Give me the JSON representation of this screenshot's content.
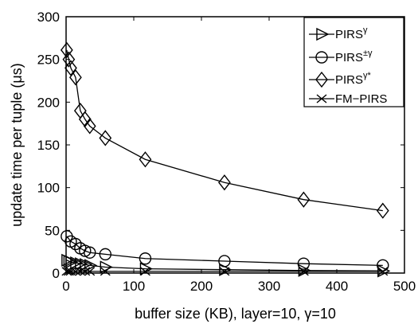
{
  "chart_data": {
    "type": "line",
    "xlabel": "buffer size (KB), layer=10, γ=10",
    "ylabel": "update time per tuple (μs)",
    "xlim": [
      0,
      500
    ],
    "ylim": [
      0,
      300
    ],
    "x_ticks": [
      "0",
      "100",
      "200",
      "300",
      "400",
      "500"
    ],
    "y_ticks": [
      "0",
      "50",
      "100",
      "150",
      "200",
      "250",
      "300"
    ],
    "grid": false,
    "legend_position": "top-right",
    "series": [
      {
        "name": "PIRS",
        "name_sup": "γ",
        "marker": "triangle-right",
        "x": [
          1,
          4,
          7,
          14,
          21,
          28,
          35,
          58,
          117,
          234,
          351,
          468
        ],
        "y": [
          15,
          14,
          13,
          12,
          11,
          10,
          9,
          7,
          5,
          4,
          3,
          2.5
        ]
      },
      {
        "name": "PIRS",
        "name_sup": "±γ",
        "marker": "circle",
        "x": [
          1,
          7,
          14,
          21,
          28,
          35,
          58,
          117,
          234,
          351,
          468
        ],
        "y": [
          43,
          37,
          34,
          29,
          26,
          24,
          22,
          17,
          14,
          11,
          9
        ]
      },
      {
        "name": "PIRS",
        "name_sup": "γ*",
        "marker": "diamond",
        "x": [
          1,
          4,
          7,
          14,
          21,
          28,
          35,
          58,
          117,
          234,
          351,
          468
        ],
        "y": [
          261,
          250,
          240,
          229,
          190,
          180,
          172,
          158,
          133,
          106,
          86,
          73
        ]
      },
      {
        "name": "FM−PIRS",
        "name_sup": "",
        "marker": "x",
        "x": [
          1,
          4,
          7,
          14,
          21,
          28,
          35,
          58,
          117,
          234,
          351,
          468
        ],
        "y": [
          2,
          2,
          2,
          2,
          2,
          2,
          2,
          2,
          2,
          2,
          2,
          2
        ]
      }
    ]
  }
}
